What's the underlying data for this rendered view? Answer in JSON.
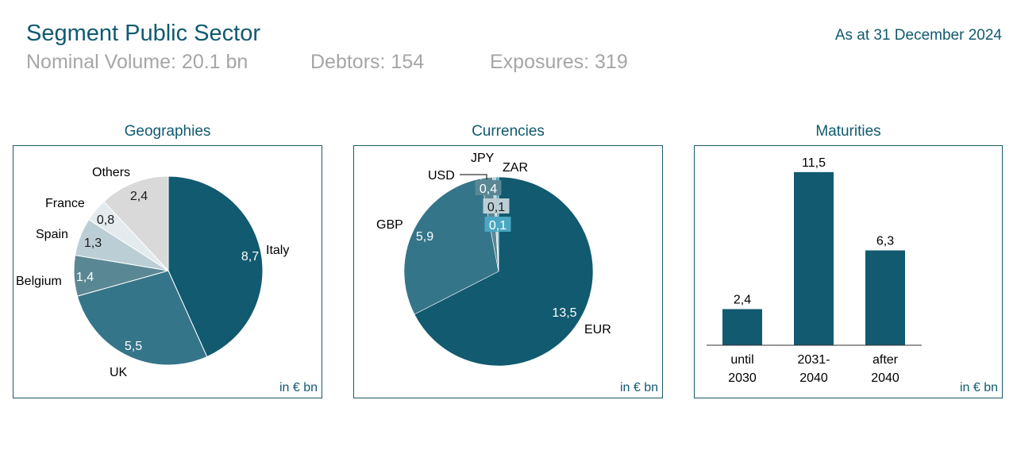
{
  "header": {
    "title": "Segment Public Sector",
    "as_at": "As at 31 December 2024",
    "nominal_volume": "Nominal Volume: 20.1 bn",
    "debtors": "Debtors: 154",
    "exposures": "Exposures: 319"
  },
  "panels": {
    "geographies": {
      "title": "Geographies",
      "unit": "in € bn"
    },
    "currencies": {
      "title": "Currencies",
      "unit": "in € bn"
    },
    "maturities": {
      "title": "Maturities",
      "unit": "in € bn"
    }
  },
  "colors": {
    "dark_teal": "#115a70",
    "mid_teal": "#35758a",
    "slate_teal": "#5a8794",
    "light_blue_grey": "#bcced5",
    "pale_blue_grey": "#e3ebee",
    "light_grey": "#d9d9d9",
    "bright_teal": "#49a7c1",
    "stat_grey": "#a6a6a6"
  },
  "chart_data": [
    {
      "type": "pie",
      "title": "Geographies",
      "unit": "in € bn",
      "slices": [
        {
          "label": "Italy",
          "value": 8.7,
          "display": "8,7",
          "color": "#115a70"
        },
        {
          "label": "UK",
          "value": 5.5,
          "display": "5,5",
          "color": "#35758a"
        },
        {
          "label": "Belgium",
          "value": 1.4,
          "display": "1,4",
          "color": "#5a8794"
        },
        {
          "label": "Spain",
          "value": 1.3,
          "display": "1,3",
          "color": "#bcced5"
        },
        {
          "label": "France",
          "value": 0.8,
          "display": "0,8",
          "color": "#e3ebee"
        },
        {
          "label": "Others",
          "value": 2.4,
          "display": "2,4",
          "color": "#d9d9d9"
        }
      ]
    },
    {
      "type": "pie",
      "title": "Currencies",
      "unit": "in € bn",
      "slices": [
        {
          "label": "EUR",
          "value": 13.5,
          "display": "13,5",
          "color": "#115a70"
        },
        {
          "label": "GBP",
          "value": 5.9,
          "display": "5,9",
          "color": "#35758a"
        },
        {
          "label": "USD",
          "value": 0.4,
          "display": "0,4",
          "color": "#5a8794"
        },
        {
          "label": "JPY",
          "value": 0.1,
          "display": "0,1",
          "color": "#bcced5"
        },
        {
          "label": "ZAR",
          "value": 0.1,
          "display": "0,1",
          "color": "#49a7c1"
        }
      ]
    },
    {
      "type": "bar",
      "title": "Maturities",
      "unit": "in € bn",
      "categories": [
        "until 2030",
        "2031-2040",
        "after 2040"
      ],
      "category_lines": [
        [
          "until",
          "2030"
        ],
        [
          "2031-",
          "2040"
        ],
        [
          "after",
          "2040"
        ]
      ],
      "values": [
        2.4,
        11.5,
        6.3
      ],
      "value_labels": [
        "2,4",
        "11,5",
        "6,3"
      ],
      "color": "#115a70",
      "ylim": [
        0,
        12.6
      ]
    }
  ]
}
